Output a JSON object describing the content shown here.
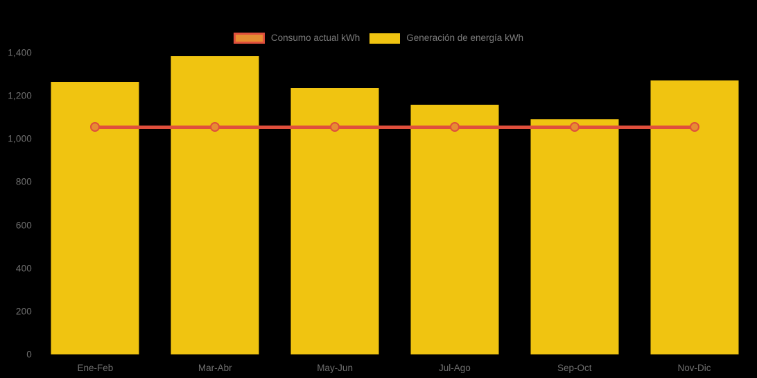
{
  "page": {
    "background": "#000000"
  },
  "legend": {
    "text_color": "#7C7C7C",
    "items": [
      {
        "label": "Consumo actual kWh",
        "type": "line",
        "fill": "#E68C32",
        "border": "#E04F3C"
      },
      {
        "label": "Generación de energía kWh",
        "type": "bar",
        "fill": "#F0C411"
      }
    ]
  },
  "chart_data": {
    "type": "bar",
    "title": "",
    "xlabel": "",
    "ylabel": "",
    "categories": [
      "Ene-Feb",
      "Mar-Abr",
      "May-Jun",
      "Jul-Ago",
      "Sep-Oct",
      "Nov-Dic"
    ],
    "series": [
      {
        "name": "Generación de energía kWh",
        "type": "bar",
        "color": "#F0C411",
        "values": [
          1265,
          1385,
          1235,
          1160,
          1090,
          1270
        ]
      },
      {
        "name": "Consumo actual kWh",
        "type": "line",
        "color": "#E04F3C",
        "marker_fill": "#E68C32",
        "values": [
          1055,
          1055,
          1055,
          1055,
          1055,
          1055
        ]
      }
    ],
    "ylim": [
      0,
      1400
    ],
    "yticks": [
      0,
      200,
      400,
      600,
      800,
      1000,
      1200,
      1400
    ],
    "ytick_labels": [
      "0",
      "200",
      "400",
      "600",
      "800",
      "1,000",
      "1,200",
      "1,400"
    ],
    "axis_text_color": "#6F6F6F",
    "grid": false,
    "legend_position": "top-center"
  }
}
